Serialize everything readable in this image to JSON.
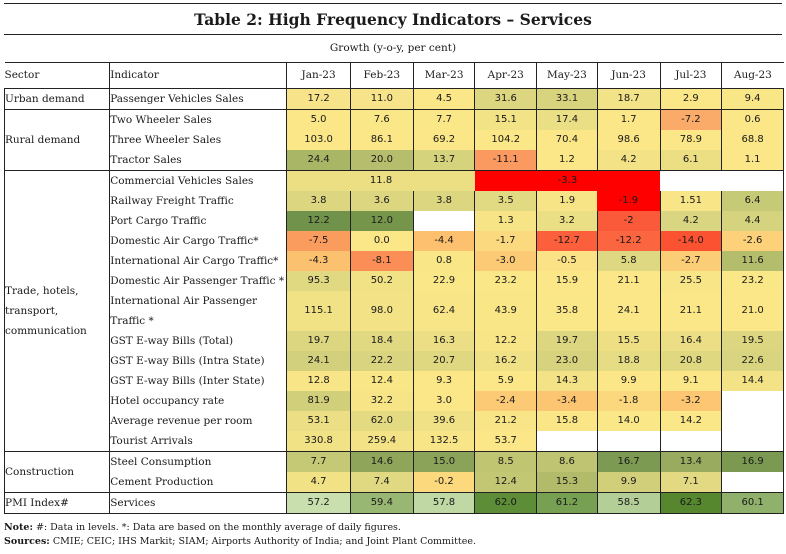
{
  "title": "Table 2: High Frequency Indicators – Services",
  "subtitle": "Growth (y-o-y, per cent)",
  "headers": {
    "sector": "Sector",
    "indicator": "Indicator",
    "months": [
      "Jan-23",
      "Feb-23",
      "Mar-23",
      "Apr-23",
      "May-23",
      "Jun-23",
      "Jul-23",
      "Aug-23"
    ]
  },
  "rows": [
    {
      "sector": "Urban demand",
      "span": 1,
      "indicator": "Passenger Vehicles Sales",
      "cells": [
        {
          "v": "17.2",
          "c": "#f7e48a"
        },
        {
          "v": "11.0",
          "c": "#f7e48a"
        },
        {
          "v": "4.5",
          "c": "#fbe787"
        },
        {
          "v": "31.6",
          "c": "#dcd681"
        },
        {
          "v": "33.1",
          "c": "#d8d47e"
        },
        {
          "v": "18.7",
          "c": "#f2e288"
        },
        {
          "v": "2.9",
          "c": "#fbe787"
        },
        {
          "v": "9.4",
          "c": "#f9e687"
        }
      ]
    },
    {
      "sector": "Rural demand",
      "span": 3,
      "indicator": "Two Wheeler Sales",
      "cells": [
        {
          "v": "5.0",
          "c": "#fbe787"
        },
        {
          "v": "7.6",
          "c": "#fae787"
        },
        {
          "v": "7.7",
          "c": "#fae787"
        },
        {
          "v": "15.1",
          "c": "#f3e387"
        },
        {
          "v": "17.4",
          "c": "#eadf85"
        },
        {
          "v": "1.7",
          "c": "#fbe787"
        },
        {
          "v": "-7.2",
          "c": "#fbab69"
        },
        {
          "v": "0.6",
          "c": "#fbe787"
        }
      ]
    },
    {
      "indicator": "Three Wheeler Sales",
      "cells": [
        {
          "v": "103.0",
          "c": "#fbe787"
        },
        {
          "v": "86.1",
          "c": "#fbe787"
        },
        {
          "v": "69.2",
          "c": "#fbe787"
        },
        {
          "v": "104.2",
          "c": "#fbe787"
        },
        {
          "v": "70.4",
          "c": "#fbe787"
        },
        {
          "v": "98.6",
          "c": "#fbe787"
        },
        {
          "v": "78.9",
          "c": "#fbe787"
        },
        {
          "v": "68.8",
          "c": "#fbe787"
        }
      ]
    },
    {
      "indicator": "Tractor Sales",
      "cells": [
        {
          "v": "24.4",
          "c": "#a8b665"
        },
        {
          "v": "20.0",
          "c": "#b6bd6c"
        },
        {
          "v": "13.7",
          "c": "#d6d37d"
        },
        {
          "v": "-11.1",
          "c": "#fb9a60"
        },
        {
          "v": "1.2",
          "c": "#fbe787"
        },
        {
          "v": "4.2",
          "c": "#f4e386"
        },
        {
          "v": "6.1",
          "c": "#ebde83"
        },
        {
          "v": "1.1",
          "c": "#fbe787"
        }
      ]
    },
    {
      "sector": "Trade, hotels, transport, communication",
      "span": 13,
      "indicator": "Commercial Vehicles Sales",
      "merged": true,
      "cells": [
        {
          "v": "11.8",
          "c": "#ebde83",
          "colspan": 3
        },
        {
          "v": "-3.3",
          "c": "#ff0000",
          "colspan": 3
        },
        {
          "v": "",
          "c": "#ffffff"
        },
        {
          "v": "",
          "c": "#ffffff"
        }
      ]
    },
    {
      "indicator": "Railway Freight Traffic",
      "cells": [
        {
          "v": "3.8",
          "c": "#dcd681"
        },
        {
          "v": "3.6",
          "c": "#dcd681"
        },
        {
          "v": "3.8",
          "c": "#dcd681"
        },
        {
          "v": "3.5",
          "c": "#e2da82"
        },
        {
          "v": "1.9",
          "c": "#f6e487"
        },
        {
          "v": "-1.9",
          "c": "#ff0000"
        },
        {
          "v": "1.51",
          "c": "#f7e587"
        },
        {
          "v": "6.4",
          "c": "#c6c975"
        }
      ]
    },
    {
      "indicator": "Port Cargo Traffic",
      "cells": [
        {
          "v": "12.2",
          "c": "#70924a"
        },
        {
          "v": "12.0",
          "c": "#75954b"
        },
        {
          "v": "",
          "c": "#ffffff"
        },
        {
          "v": "1.3",
          "c": "#f7e487"
        },
        {
          "v": "3.2",
          "c": "#eadf84"
        },
        {
          "v": "-2",
          "c": "#fb5a3a"
        },
        {
          "v": "4.2",
          "c": "#dad580"
        },
        {
          "v": "4.4",
          "c": "#d6d37e"
        }
      ]
    },
    {
      "indicator": "Domestic Air Cargo Traffic*",
      "cells": [
        {
          "v": "-7.5",
          "c": "#fb9c5f"
        },
        {
          "v": "0.0",
          "c": "#fbe787"
        },
        {
          "v": "-4.4",
          "c": "#fcc06f"
        },
        {
          "v": "-1.7",
          "c": "#fbd97e"
        },
        {
          "v": "-12.7",
          "c": "#fb5f3c"
        },
        {
          "v": "-12.2",
          "c": "#fb6540"
        },
        {
          "v": "-14.0",
          "c": "#fb5232"
        },
        {
          "v": "-2.6",
          "c": "#fcd17a"
        }
      ]
    },
    {
      "indicator": "International Air Cargo Traffic*",
      "cells": [
        {
          "v": "-4.3",
          "c": "#fcc16f"
        },
        {
          "v": "-8.1",
          "c": "#fb8d57"
        },
        {
          "v": "0.8",
          "c": "#f9e687"
        },
        {
          "v": "-3.0",
          "c": "#fcca74"
        },
        {
          "v": "-0.5",
          "c": "#fbe286"
        },
        {
          "v": "5.8",
          "c": "#dfd882"
        },
        {
          "v": "-2.7",
          "c": "#fccd77"
        },
        {
          "v": "11.6",
          "c": "#b4bd6c"
        }
      ]
    },
    {
      "indicator": "Domestic Air Passenger Traffic *",
      "cells": [
        {
          "v": "95.3",
          "c": "#e1d982"
        },
        {
          "v": "50.2",
          "c": "#f1e286"
        },
        {
          "v": "22.9",
          "c": "#fae787"
        },
        {
          "v": "23.2",
          "c": "#fae787"
        },
        {
          "v": "15.9",
          "c": "#fbe787"
        },
        {
          "v": "21.1",
          "c": "#fbe787"
        },
        {
          "v": "25.5",
          "c": "#f8e587"
        },
        {
          "v": "23.2",
          "c": "#fae787"
        }
      ]
    },
    {
      "indicator": "International Air Passenger Traffic *",
      "tall": true,
      "cells": [
        {
          "v": "115.1",
          "c": "#f1e286"
        },
        {
          "v": "98.0",
          "c": "#f3e386"
        },
        {
          "v": "62.4",
          "c": "#f8e587"
        },
        {
          "v": "43.9",
          "c": "#f9e687"
        },
        {
          "v": "35.8",
          "c": "#fae787"
        },
        {
          "v": "24.1",
          "c": "#fbe787"
        },
        {
          "v": "21.1",
          "c": "#fbe787"
        },
        {
          "v": "21.0",
          "c": "#fbe787"
        }
      ]
    },
    {
      "indicator": "GST E-way Bills (Total)",
      "cells": [
        {
          "v": "19.7",
          "c": "#dcd681"
        },
        {
          "v": "18.4",
          "c": "#e1d982"
        },
        {
          "v": "16.3",
          "c": "#ebde84"
        },
        {
          "v": "12.2",
          "c": "#f8e587"
        },
        {
          "v": "19.7",
          "c": "#dcd681"
        },
        {
          "v": "15.5",
          "c": "#eedf85"
        },
        {
          "v": "16.4",
          "c": "#ebde84"
        },
        {
          "v": "19.5",
          "c": "#dcd681"
        }
      ]
    },
    {
      "indicator": "GST E-way Bills (Intra State)",
      "cells": [
        {
          "v": "24.1",
          "c": "#d2d07c"
        },
        {
          "v": "22.2",
          "c": "#d9d480"
        },
        {
          "v": "20.7",
          "c": "#dfd881"
        },
        {
          "v": "16.2",
          "c": "#f0e186"
        },
        {
          "v": "23.0",
          "c": "#d6d27e"
        },
        {
          "v": "18.8",
          "c": "#e6dc83"
        },
        {
          "v": "20.8",
          "c": "#dfd881"
        },
        {
          "v": "22.6",
          "c": "#d8d47f"
        }
      ]
    },
    {
      "indicator": "GST E-way Bills (Inter State)",
      "cells": [
        {
          "v": "12.8",
          "c": "#f8e587"
        },
        {
          "v": "12.4",
          "c": "#f9e687"
        },
        {
          "v": "9.3",
          "c": "#fbe787"
        },
        {
          "v": "5.9",
          "c": "#fbe787"
        },
        {
          "v": "14.3",
          "c": "#f3e386"
        },
        {
          "v": "9.9",
          "c": "#fbe787"
        },
        {
          "v": "9.1",
          "c": "#fbe787"
        },
        {
          "v": "14.4",
          "c": "#f3e386"
        }
      ]
    },
    {
      "indicator": "Hotel occupancy rate",
      "cells": [
        {
          "v": "81.9",
          "c": "#d2cf7b"
        },
        {
          "v": "32.2",
          "c": "#f6e487"
        },
        {
          "v": "3.0",
          "c": "#fbe787"
        },
        {
          "v": "-2.4",
          "c": "#fcca74"
        },
        {
          "v": "-3.4",
          "c": "#fcc571"
        },
        {
          "v": "-1.8",
          "c": "#fbd87d"
        },
        {
          "v": "-3.2",
          "c": "#fcc672"
        },
        {
          "v": "",
          "c": "#ffffff"
        }
      ]
    },
    {
      "indicator": "Average revenue per room",
      "cells": [
        {
          "v": "53.1",
          "c": "#ebde84"
        },
        {
          "v": "62.0",
          "c": "#e4da82"
        },
        {
          "v": "39.6",
          "c": "#f0e186"
        },
        {
          "v": "21.2",
          "c": "#f7e587"
        },
        {
          "v": "15.8",
          "c": "#fae687"
        },
        {
          "v": "14.0",
          "c": "#fae787"
        },
        {
          "v": "14.2",
          "c": "#fae787"
        },
        {
          "v": "",
          "c": "#ffffff"
        }
      ]
    },
    {
      "indicator": "Tourist Arrivals",
      "cells": [
        {
          "v": "330.8",
          "c": "#f1e286"
        },
        {
          "v": "259.4",
          "c": "#f4e386"
        },
        {
          "v": "132.5",
          "c": "#f8e587"
        },
        {
          "v": "53.7",
          "c": "#fbe787"
        },
        {
          "v": "",
          "c": "#ffffff"
        },
        {
          "v": "",
          "c": "#ffffff"
        },
        {
          "v": "",
          "c": "#ffffff"
        },
        {
          "v": "",
          "c": "#ffffff"
        }
      ]
    },
    {
      "sector": "Construction",
      "span": 2,
      "indicator": "Steel Consumption",
      "cells": [
        {
          "v": "7.7",
          "c": "#c5c874"
        },
        {
          "v": "14.6",
          "c": "#8ea55a"
        },
        {
          "v": "15.0",
          "c": "#8ba358"
        },
        {
          "v": "8.5",
          "c": "#bfc571"
        },
        {
          "v": "8.6",
          "c": "#bec471"
        },
        {
          "v": "16.7",
          "c": "#7c9a52"
        },
        {
          "v": "13.4",
          "c": "#98ab5e"
        },
        {
          "v": "16.9",
          "c": "#7b9951"
        }
      ]
    },
    {
      "indicator": "Cement Production",
      "cells": [
        {
          "v": "4.7",
          "c": "#f2e286"
        },
        {
          "v": "7.4",
          "c": "#e1d982"
        },
        {
          "v": "-0.2",
          "c": "#fcd97c"
        },
        {
          "v": "12.4",
          "c": "#c3c773"
        },
        {
          "v": "15.3",
          "c": "#b2bb6a"
        },
        {
          "v": "9.9",
          "c": "#d2cf7b"
        },
        {
          "v": "7.1",
          "c": "#e2d982"
        },
        {
          "v": "",
          "c": "#ffffff"
        }
      ]
    },
    {
      "sector": "PMI Index#",
      "span": 1,
      "indicator": "Services",
      "cells": [
        {
          "v": "57.2",
          "c": "#c9dfae"
        },
        {
          "v": "59.4",
          "c": "#98b773"
        },
        {
          "v": "57.8",
          "c": "#c0d8a4"
        },
        {
          "v": "62.0",
          "c": "#5e8d37"
        },
        {
          "v": "61.2",
          "c": "#78a052"
        },
        {
          "v": "58.5",
          "c": "#b3cf97"
        },
        {
          "v": "62.3",
          "c": "#56872f"
        },
        {
          "v": "60.1",
          "c": "#8fb16b"
        }
      ]
    }
  ],
  "note": {
    "label": "Note:",
    "text": " #: Data in levels. *: Data are based on the monthly average of daily figures.",
    "sources_label": "Sources:",
    "sources_text": " CMIE; CEIC; IHS Markit; SIAM; Airports Authority of India; and Joint Plant Committee."
  }
}
